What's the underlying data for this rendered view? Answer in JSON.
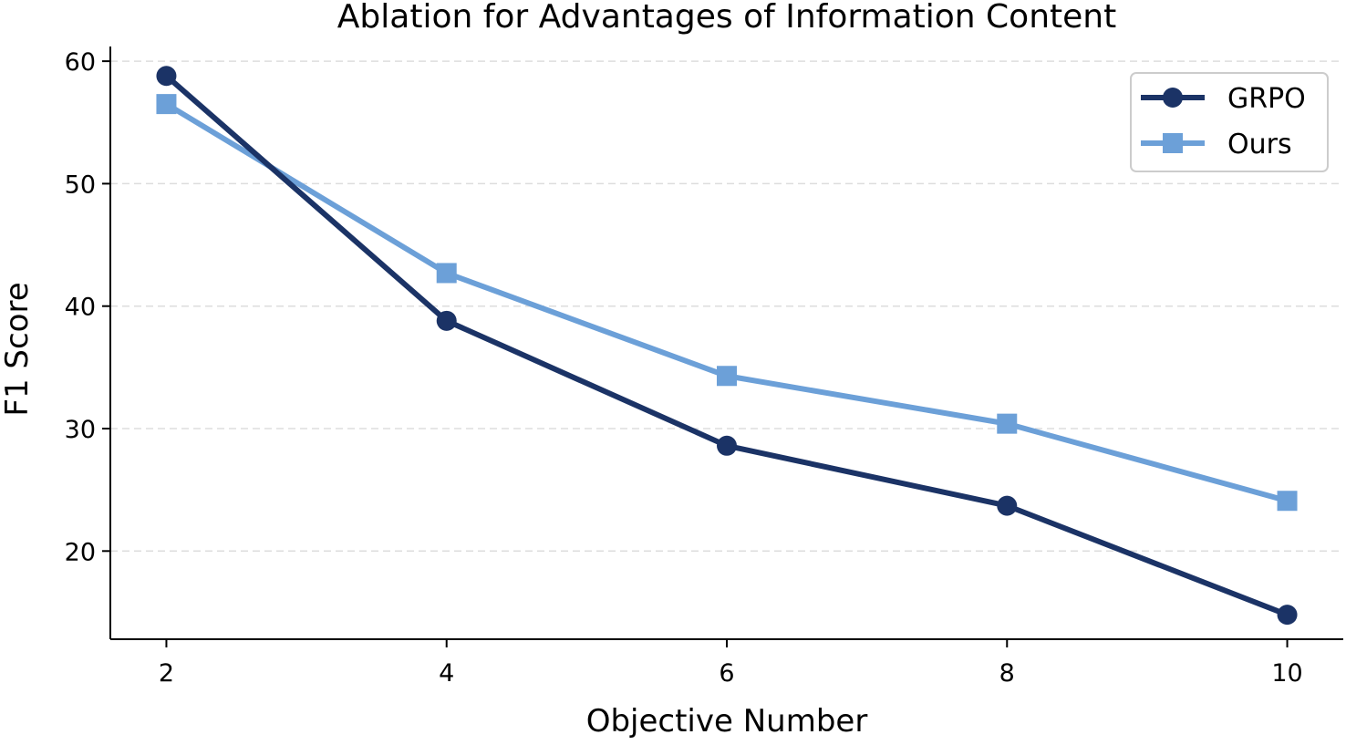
{
  "chart_data": {
    "type": "line",
    "title": "Ablation for Advantages of Information Content",
    "xlabel": "Objective Number",
    "ylabel": "F1 Score",
    "x": [
      2,
      4,
      6,
      8,
      10
    ],
    "x_ticks": [
      "2",
      "4",
      "6",
      "8",
      "10"
    ],
    "y_ticks": [
      "20",
      "30",
      "40",
      "50",
      "60"
    ],
    "xlim": [
      1.6,
      10.4
    ],
    "ylim": [
      12.8,
      61.2
    ],
    "grid": "horizontal dashed",
    "legend_position": "top-right",
    "series": [
      {
        "name": "GRPO",
        "marker": "circle",
        "color": "#1b3366",
        "values": [
          58.8,
          38.8,
          28.6,
          23.7,
          14.8
        ]
      },
      {
        "name": "Ours",
        "marker": "square",
        "color": "#6ca0d8",
        "values": [
          56.5,
          42.7,
          34.3,
          30.4,
          24.1
        ]
      }
    ]
  }
}
